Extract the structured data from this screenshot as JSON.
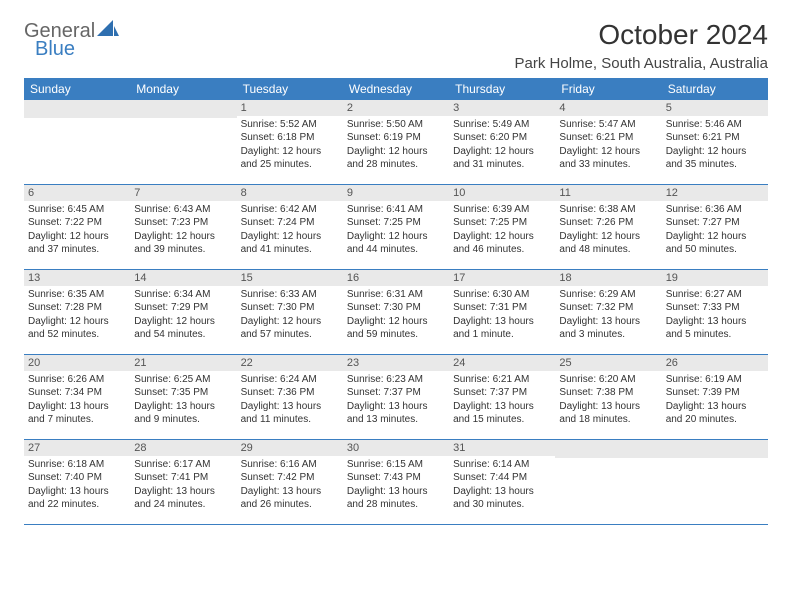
{
  "logo": {
    "text1": "General",
    "text2": "Blue"
  },
  "title": "October 2024",
  "location": "Park Holme, South Australia, Australia",
  "colors": {
    "header_bg": "#3a7ec1",
    "header_text": "#ffffff",
    "daynum_bg": "#e9e9e9",
    "rule": "#3a7ec1",
    "body_text": "#333333"
  },
  "weekdays": [
    "Sunday",
    "Monday",
    "Tuesday",
    "Wednesday",
    "Thursday",
    "Friday",
    "Saturday"
  ],
  "weeks": [
    [
      null,
      null,
      {
        "n": "1",
        "sr": "5:52 AM",
        "ss": "6:18 PM",
        "dl": "12 hours and 25 minutes."
      },
      {
        "n": "2",
        "sr": "5:50 AM",
        "ss": "6:19 PM",
        "dl": "12 hours and 28 minutes."
      },
      {
        "n": "3",
        "sr": "5:49 AM",
        "ss": "6:20 PM",
        "dl": "12 hours and 31 minutes."
      },
      {
        "n": "4",
        "sr": "5:47 AM",
        "ss": "6:21 PM",
        "dl": "12 hours and 33 minutes."
      },
      {
        "n": "5",
        "sr": "5:46 AM",
        "ss": "6:21 PM",
        "dl": "12 hours and 35 minutes."
      }
    ],
    [
      {
        "n": "6",
        "sr": "6:45 AM",
        "ss": "7:22 PM",
        "dl": "12 hours and 37 minutes."
      },
      {
        "n": "7",
        "sr": "6:43 AM",
        "ss": "7:23 PM",
        "dl": "12 hours and 39 minutes."
      },
      {
        "n": "8",
        "sr": "6:42 AM",
        "ss": "7:24 PM",
        "dl": "12 hours and 41 minutes."
      },
      {
        "n": "9",
        "sr": "6:41 AM",
        "ss": "7:25 PM",
        "dl": "12 hours and 44 minutes."
      },
      {
        "n": "10",
        "sr": "6:39 AM",
        "ss": "7:25 PM",
        "dl": "12 hours and 46 minutes."
      },
      {
        "n": "11",
        "sr": "6:38 AM",
        "ss": "7:26 PM",
        "dl": "12 hours and 48 minutes."
      },
      {
        "n": "12",
        "sr": "6:36 AM",
        "ss": "7:27 PM",
        "dl": "12 hours and 50 minutes."
      }
    ],
    [
      {
        "n": "13",
        "sr": "6:35 AM",
        "ss": "7:28 PM",
        "dl": "12 hours and 52 minutes."
      },
      {
        "n": "14",
        "sr": "6:34 AM",
        "ss": "7:29 PM",
        "dl": "12 hours and 54 minutes."
      },
      {
        "n": "15",
        "sr": "6:33 AM",
        "ss": "7:30 PM",
        "dl": "12 hours and 57 minutes."
      },
      {
        "n": "16",
        "sr": "6:31 AM",
        "ss": "7:30 PM",
        "dl": "12 hours and 59 minutes."
      },
      {
        "n": "17",
        "sr": "6:30 AM",
        "ss": "7:31 PM",
        "dl": "13 hours and 1 minute."
      },
      {
        "n": "18",
        "sr": "6:29 AM",
        "ss": "7:32 PM",
        "dl": "13 hours and 3 minutes."
      },
      {
        "n": "19",
        "sr": "6:27 AM",
        "ss": "7:33 PM",
        "dl": "13 hours and 5 minutes."
      }
    ],
    [
      {
        "n": "20",
        "sr": "6:26 AM",
        "ss": "7:34 PM",
        "dl": "13 hours and 7 minutes."
      },
      {
        "n": "21",
        "sr": "6:25 AM",
        "ss": "7:35 PM",
        "dl": "13 hours and 9 minutes."
      },
      {
        "n": "22",
        "sr": "6:24 AM",
        "ss": "7:36 PM",
        "dl": "13 hours and 11 minutes."
      },
      {
        "n": "23",
        "sr": "6:23 AM",
        "ss": "7:37 PM",
        "dl": "13 hours and 13 minutes."
      },
      {
        "n": "24",
        "sr": "6:21 AM",
        "ss": "7:37 PM",
        "dl": "13 hours and 15 minutes."
      },
      {
        "n": "25",
        "sr": "6:20 AM",
        "ss": "7:38 PM",
        "dl": "13 hours and 18 minutes."
      },
      {
        "n": "26",
        "sr": "6:19 AM",
        "ss": "7:39 PM",
        "dl": "13 hours and 20 minutes."
      }
    ],
    [
      {
        "n": "27",
        "sr": "6:18 AM",
        "ss": "7:40 PM",
        "dl": "13 hours and 22 minutes."
      },
      {
        "n": "28",
        "sr": "6:17 AM",
        "ss": "7:41 PM",
        "dl": "13 hours and 24 minutes."
      },
      {
        "n": "29",
        "sr": "6:16 AM",
        "ss": "7:42 PM",
        "dl": "13 hours and 26 minutes."
      },
      {
        "n": "30",
        "sr": "6:15 AM",
        "ss": "7:43 PM",
        "dl": "13 hours and 28 minutes."
      },
      {
        "n": "31",
        "sr": "6:14 AM",
        "ss": "7:44 PM",
        "dl": "13 hours and 30 minutes."
      },
      null,
      null
    ]
  ]
}
